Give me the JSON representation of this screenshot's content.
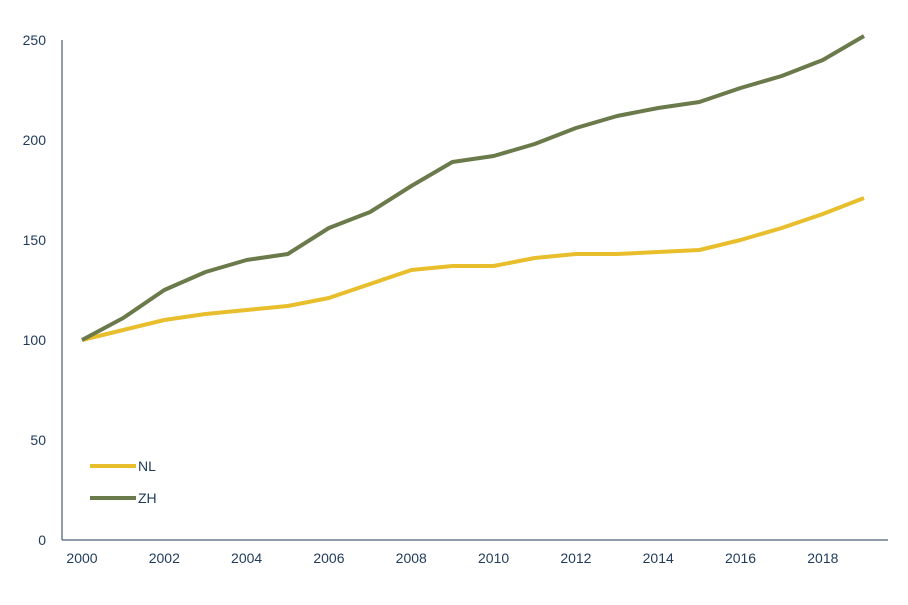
{
  "chart_data": {
    "type": "line",
    "title": "",
    "xlabel": "",
    "ylabel": "",
    "x": [
      2000,
      2001,
      2002,
      2003,
      2004,
      2005,
      2006,
      2007,
      2008,
      2009,
      2010,
      2011,
      2012,
      2013,
      2014,
      2015,
      2016,
      2017,
      2018,
      2019
    ],
    "xticks": [
      "2000",
      "2002",
      "2004",
      "2006",
      "2008",
      "2010",
      "2012",
      "2014",
      "2016",
      "2018"
    ],
    "xlim": [
      2000,
      2019
    ],
    "yticks": [
      "0",
      "50",
      "100",
      "150",
      "200",
      "250"
    ],
    "ylim": [
      0,
      250
    ],
    "grid": false,
    "legend_position": "bottom-left",
    "series": [
      {
        "name": "NL",
        "color": "#E8BE2C",
        "values": [
          100,
          105,
          110,
          113,
          115,
          117,
          121,
          128,
          135,
          137,
          137,
          141,
          143,
          143,
          144,
          145,
          150,
          156,
          163,
          171
        ]
      },
      {
        "name": "ZH",
        "color": "#6B7A4B",
        "values": [
          100,
          111,
          125,
          134,
          140,
          143,
          156,
          164,
          177,
          189,
          192,
          198,
          206,
          212,
          216,
          219,
          226,
          232,
          240,
          252
        ]
      }
    ],
    "axis_color": "#1F3B5A",
    "tick_label_color": "#1F3B5A"
  }
}
